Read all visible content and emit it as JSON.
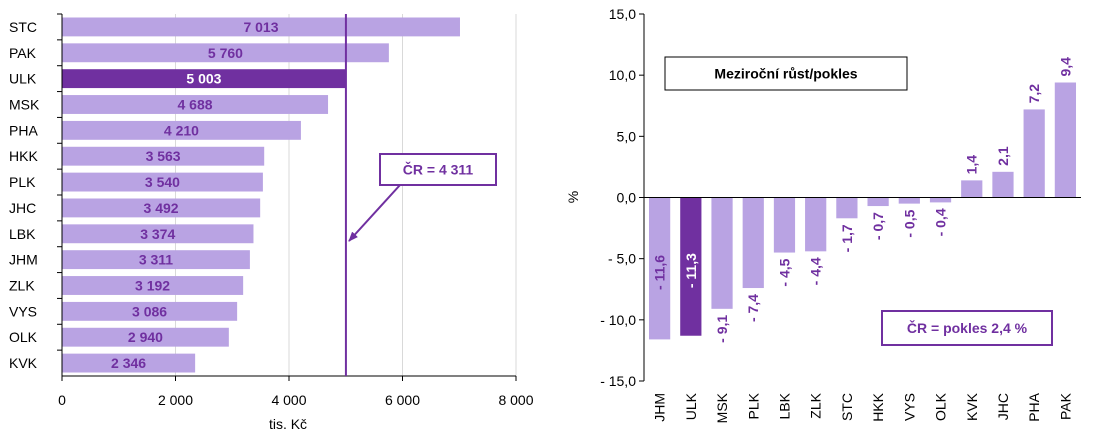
{
  "colors": {
    "bar": "#b9a3e3",
    "highlight": "#7030a0",
    "label": "#7030a0",
    "axis": "#000000",
    "grid": "#d9d9d9"
  },
  "chart_data": [
    {
      "type": "bar",
      "orientation": "horizontal",
      "categories": [
        "STC",
        "PAK",
        "ULK",
        "MSK",
        "PHA",
        "HKK",
        "PLK",
        "JHC",
        "LBK",
        "JHM",
        "ZLK",
        "VYS",
        "OLK",
        "KVK"
      ],
      "values": [
        7013,
        5760,
        5003,
        4688,
        4210,
        3563,
        3540,
        3492,
        3374,
        3311,
        3192,
        3086,
        2940,
        2346
      ],
      "value_labels": [
        "7 013",
        "5 760",
        "5 003",
        "4 688",
        "4 210",
        "3 563",
        "3 540",
        "3 492",
        "3 374",
        "3 311",
        "3 192",
        "3 086",
        "2 940",
        "2 346"
      ],
      "highlight": "ULK",
      "xlim": [
        0,
        8000
      ],
      "xticks": [
        0,
        2000,
        4000,
        6000,
        8000
      ],
      "xtick_labels": [
        "0",
        "2 000",
        "4 000",
        "6 000",
        "8 000"
      ],
      "xlabel": "tis. Kč",
      "grid": "vertical",
      "reference_line": 5003,
      "annotation": "ČR = 4 311"
    },
    {
      "type": "bar",
      "orientation": "vertical",
      "title": "Meziroční růst/pokles",
      "categories": [
        "JHM",
        "ULK",
        "MSK",
        "PLK",
        "LBK",
        "ZLK",
        "STC",
        "HKK",
        "VYS",
        "OLK",
        "KVK",
        "JHC",
        "PHA",
        "PAK"
      ],
      "values": [
        -11.6,
        -11.3,
        -9.1,
        -7.4,
        -4.5,
        -4.4,
        -1.7,
        -0.7,
        -0.5,
        -0.4,
        1.4,
        2.1,
        7.2,
        9.4
      ],
      "value_labels": [
        "- 11,6",
        "- 11,3",
        "- 9,1",
        "- 7,4",
        "- 4,5",
        "- 4,4",
        "- 1,7",
        "- 0,7",
        "- 0,5",
        "- 0,4",
        "1,4",
        "2,1",
        "7,2",
        "9,4"
      ],
      "highlight": "ULK",
      "ylim": [
        -15,
        15
      ],
      "yticks": [
        15,
        10,
        5,
        0,
        -5,
        -10,
        -15
      ],
      "ytick_labels": [
        "15,0",
        "10,0",
        "5,0",
        "0,0",
        "- 5,0",
        "- 10,0",
        "- 15,0"
      ],
      "ylabel": "%",
      "annotation": "ČR = pokles 2,4 %"
    }
  ]
}
